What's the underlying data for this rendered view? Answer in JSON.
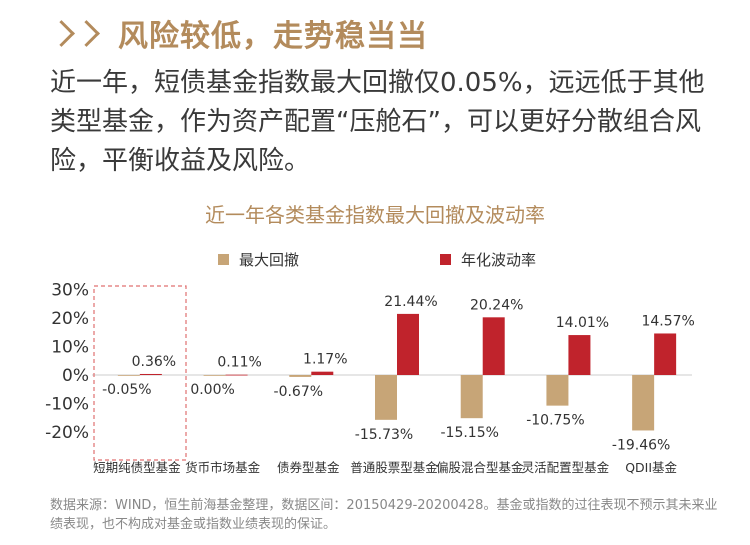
{
  "header": {
    "title": "风险较低，走势稳当当"
  },
  "body_text": "近一年，短债基金指数最大回撤仅0.05%，远远低于其他类型基金，作为资产配置“压舱石”，可以更好分散组合风险，平衡收益及风险。",
  "footnote": "数据来源：WIND，恒生前海基金整理，数据区间：20150429-20200428。基金或指数的过往表现不预示其未来业绩表现，也不构成对基金或指数业绩表现的保证。",
  "colors": {
    "accent": "#b38b5c",
    "drawdown": "#c7a577",
    "volatility": "#c0232c",
    "highlight_box": "#e07070"
  },
  "chart_data": {
    "type": "bar",
    "title": "近一年各类基金指数最大回撤及波动率",
    "categories": [
      "短期纯债型基金",
      "货币市场基金",
      "债券型基金",
      "普通股票型基金",
      "偏股混合型基金",
      "灵活配置型基金",
      "QDII基金"
    ],
    "series": [
      {
        "name": "最大回撤",
        "values": [
          -0.05,
          0.0,
          -0.67,
          -15.73,
          -15.15,
          -10.75,
          -19.46
        ],
        "labels": [
          "-0.05%",
          "0.00%",
          "-0.67%",
          "-15.73%",
          "-15.15%",
          "-10.75%",
          "-19.46%"
        ]
      },
      {
        "name": "年化波动率",
        "values": [
          0.36,
          0.11,
          1.17,
          21.44,
          20.24,
          14.01,
          14.57
        ],
        "labels": [
          "0.36%",
          "0.11%",
          "1.17%",
          "21.44%",
          "20.24%",
          "14.01%",
          "14.57%"
        ]
      }
    ],
    "yticks": [
      "30%",
      "20%",
      "10%",
      "0%",
      "-10%",
      "-20%"
    ],
    "ylim": [
      -20,
      30
    ],
    "highlighted_category": "短期纯债型基金",
    "xlabel": "",
    "ylabel": ""
  }
}
